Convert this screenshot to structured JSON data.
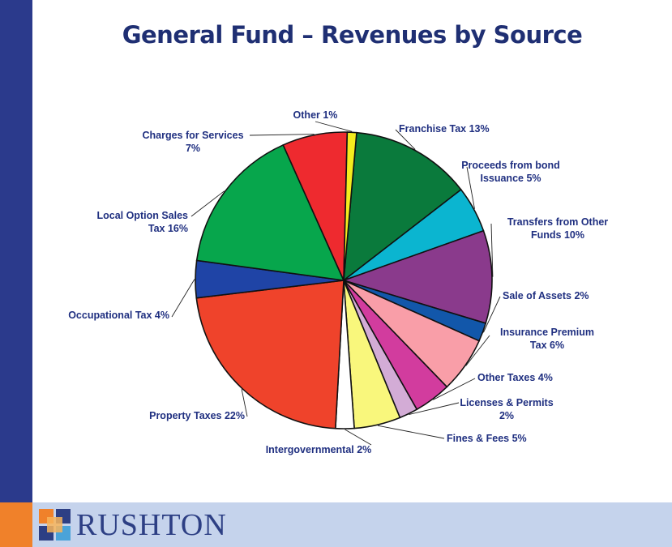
{
  "page": {
    "title": "General Fund – Revenues by Source"
  },
  "brand": {
    "name": "RUSHTON"
  },
  "chart_data": {
    "type": "pie",
    "title": "General Fund – Revenues by Source",
    "start_angle_deg": 275,
    "direction": "clockwise",
    "slices": [
      {
        "name": "Franchise Tax",
        "value": 13,
        "label": [
          "Franchise Tax 13%"
        ],
        "color": "#0a7a3c"
      },
      {
        "name": "Proceeds from bond Issuance",
        "value": 5,
        "label": [
          "Proceeds from bond",
          "Issuance 5%"
        ],
        "color": "#0bb5d0"
      },
      {
        "name": "Transfers from Other Funds",
        "value": 10,
        "label": [
          "Transfers from Other",
          "Funds 10%"
        ],
        "color": "#8a3a8c"
      },
      {
        "name": "Sale of Assets",
        "value": 2,
        "label": [
          "Sale of Assets 2%"
        ],
        "color": "#1257aa"
      },
      {
        "name": "Insurance Premium Tax",
        "value": 6,
        "label": [
          "Insurance Premium",
          "Tax 6%"
        ],
        "color": "#f99ea8"
      },
      {
        "name": "Other Taxes",
        "value": 4,
        "label": [
          "Other Taxes 4%"
        ],
        "color": "#d23c9e"
      },
      {
        "name": "Licenses & Permits",
        "value": 2,
        "label": [
          "Licenses &  Permits",
          "2%"
        ],
        "color": "#d3acd6"
      },
      {
        "name": "Fines & Fees",
        "value": 5,
        "label": [
          "Fines & Fees 5%"
        ],
        "color": "#f9f77c"
      },
      {
        "name": "Intergovernmental",
        "value": 2,
        "label": [
          "Intergovernmental 2%"
        ],
        "color": "#ffffff"
      },
      {
        "name": "Property Taxes",
        "value": 22,
        "label": [
          "Property Taxes 22%"
        ],
        "color": "#ef432b"
      },
      {
        "name": "Occupational Tax",
        "value": 4,
        "label": [
          "Occupational Tax 4%"
        ],
        "color": "#1f44a6"
      },
      {
        "name": "Local Option Sales Tax",
        "value": 16,
        "label": [
          "Local Option Sales",
          "Tax 16%"
        ],
        "color": "#07a64c"
      },
      {
        "name": "Charges for Services",
        "value": 7,
        "label": [
          "Charges for Services",
          "7%"
        ],
        "color": "#ee2a2f"
      },
      {
        "name": "Other",
        "value": 1,
        "label": [
          "Other 1%"
        ],
        "color": "#f4ec1e"
      }
    ],
    "legend": "none"
  }
}
